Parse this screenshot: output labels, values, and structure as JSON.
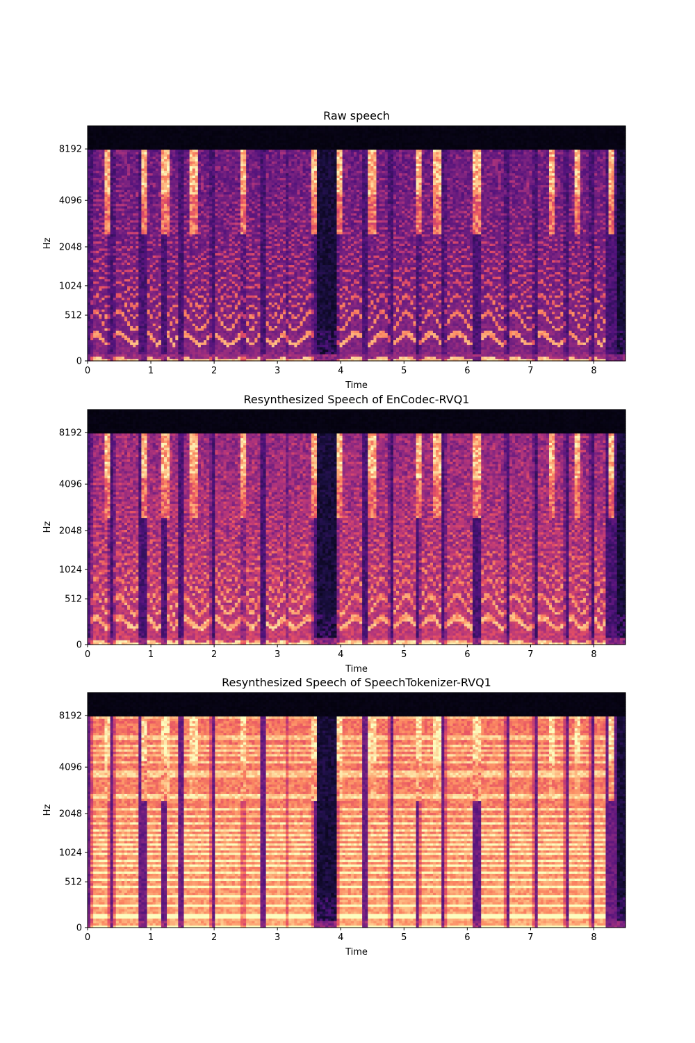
{
  "chart_data": [
    {
      "type": "heatmap",
      "title": "Raw speech",
      "xlabel": "Time",
      "ylabel": "Hz",
      "xlim": [
        0,
        8.5
      ],
      "x_ticks": [
        0,
        1,
        2,
        3,
        4,
        5,
        6,
        7,
        8
      ],
      "y_scale": "mel",
      "ylim_hz": [
        0,
        11025
      ],
      "y_ticks": [
        0,
        512,
        1024,
        2048,
        4096,
        8192
      ],
      "colormap": "magma",
      "style": "raw",
      "grid": false
    },
    {
      "type": "heatmap",
      "title": "Resynthesized Speech of EnCodec-RVQ1",
      "xlabel": "Time",
      "ylabel": "Hz",
      "xlim": [
        0,
        8.5
      ],
      "x_ticks": [
        0,
        1,
        2,
        3,
        4,
        5,
        6,
        7,
        8
      ],
      "y_scale": "mel",
      "ylim_hz": [
        0,
        11025
      ],
      "y_ticks": [
        0,
        512,
        1024,
        2048,
        4096,
        8192
      ],
      "colormap": "magma",
      "style": "encodec",
      "grid": false
    },
    {
      "type": "heatmap",
      "title": "Resynthesized Speech of SpeechTokenizer-RVQ1",
      "xlabel": "Time",
      "ylabel": "Hz",
      "xlim": [
        0,
        8.5
      ],
      "x_ticks": [
        0,
        1,
        2,
        3,
        4,
        5,
        6,
        7,
        8
      ],
      "y_scale": "mel",
      "ylim_hz": [
        0,
        11025
      ],
      "y_ticks": [
        0,
        512,
        1024,
        2048,
        4096,
        8192
      ],
      "colormap": "magma",
      "style": "speechtokenizer",
      "grid": false
    }
  ]
}
